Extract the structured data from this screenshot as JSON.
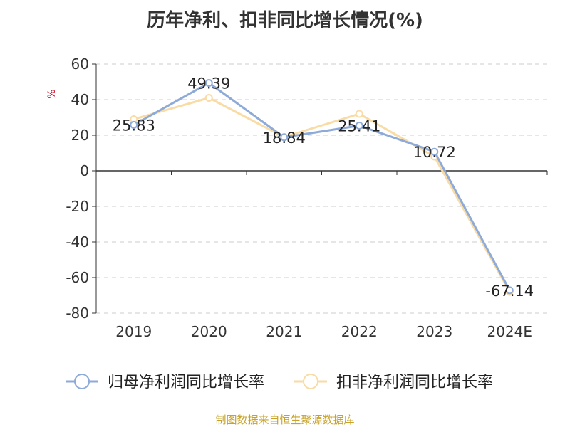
{
  "chart_data": {
    "type": "line",
    "title": "历年净利、扣非同比增长情况(%)",
    "ylabel": "%",
    "xlabel": "",
    "categories": [
      "2019",
      "2020",
      "2021",
      "2022",
      "2023",
      "2024E"
    ],
    "ylim": [
      -80,
      60
    ],
    "yticks": [
      60,
      40,
      20,
      0,
      -20,
      -40,
      -60,
      -80
    ],
    "grid": true,
    "legend_position": "bottom",
    "series": [
      {
        "name": "归母净利润同比增长率",
        "color": "#8eaad9",
        "values": [
          25.83,
          49.39,
          18.84,
          25.41,
          10.72,
          -67.14
        ],
        "labels": [
          "25.83",
          "49.39",
          "18.84",
          "25.41",
          "10.72",
          "-67.14"
        ]
      },
      {
        "name": "扣非净利润同比增长率",
        "color": "#f9dba5",
        "values": [
          29.0,
          41.0,
          19.0,
          32.0,
          8.0,
          -68.0
        ]
      }
    ]
  },
  "source_text": "制图数据来自恒生聚源数据库"
}
